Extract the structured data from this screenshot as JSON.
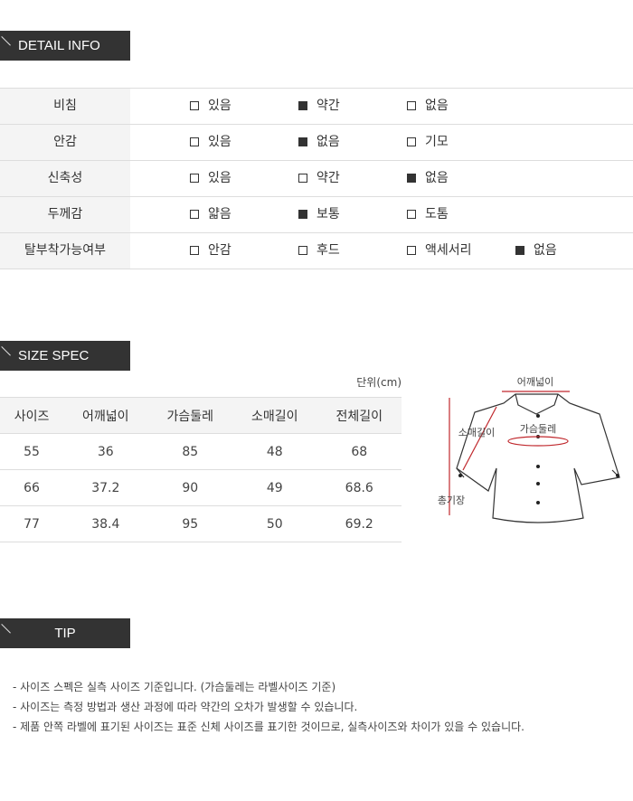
{
  "detail": {
    "title": "DETAIL INFO",
    "rows": [
      {
        "label": "비침",
        "options": [
          {
            "text": "있음",
            "checked": false
          },
          {
            "text": "약간",
            "checked": true
          },
          {
            "text": "없음",
            "checked": false
          }
        ]
      },
      {
        "label": "안감",
        "options": [
          {
            "text": "있음",
            "checked": false
          },
          {
            "text": "없음",
            "checked": true
          },
          {
            "text": "기모",
            "checked": false
          }
        ]
      },
      {
        "label": "신축성",
        "options": [
          {
            "text": "있음",
            "checked": false
          },
          {
            "text": "약간",
            "checked": false
          },
          {
            "text": "없음",
            "checked": true
          }
        ]
      },
      {
        "label": "두께감",
        "options": [
          {
            "text": "얇음",
            "checked": false
          },
          {
            "text": "보통",
            "checked": true
          },
          {
            "text": "도톰",
            "checked": false
          }
        ]
      },
      {
        "label": "탈부착가능여부",
        "options": [
          {
            "text": "안감",
            "checked": false
          },
          {
            "text": "후드",
            "checked": false
          },
          {
            "text": "액세서리",
            "checked": false
          },
          {
            "text": "없음",
            "checked": true
          }
        ]
      }
    ]
  },
  "size": {
    "title": "SIZE SPEC",
    "unit": "단위(cm)",
    "headers": [
      "사이즈",
      "어깨넓이",
      "가슴둘레",
      "소매길이",
      "전체길이"
    ],
    "rows": [
      [
        "55",
        "36",
        "85",
        "48",
        "68"
      ],
      [
        "66",
        "37.2",
        "90",
        "49",
        "68.6"
      ],
      [
        "77",
        "38.4",
        "95",
        "50",
        "69.2"
      ]
    ],
    "diagram": {
      "shoulder": "어깨넓이",
      "sleeve": "소매길이",
      "chest": "가슴둘레",
      "length": "총기장",
      "accent": "#c0282d"
    }
  },
  "tip": {
    "title": "TIP",
    "lines": [
      "- 사이즈 스펙은 실측 사이즈 기준입니다. (가슴둘레는 라벨사이즈 기준)",
      "- 사이즈는 측정 방법과 생산 과정에 따라 약간의 오차가 발생할 수 있습니다.",
      "- 제품 안쪽 라벨에 표기된 사이즈는 표준 신체 사이즈를 표기한 것이므로, 실측사이즈와 차이가 있을 수 있습니다."
    ]
  }
}
